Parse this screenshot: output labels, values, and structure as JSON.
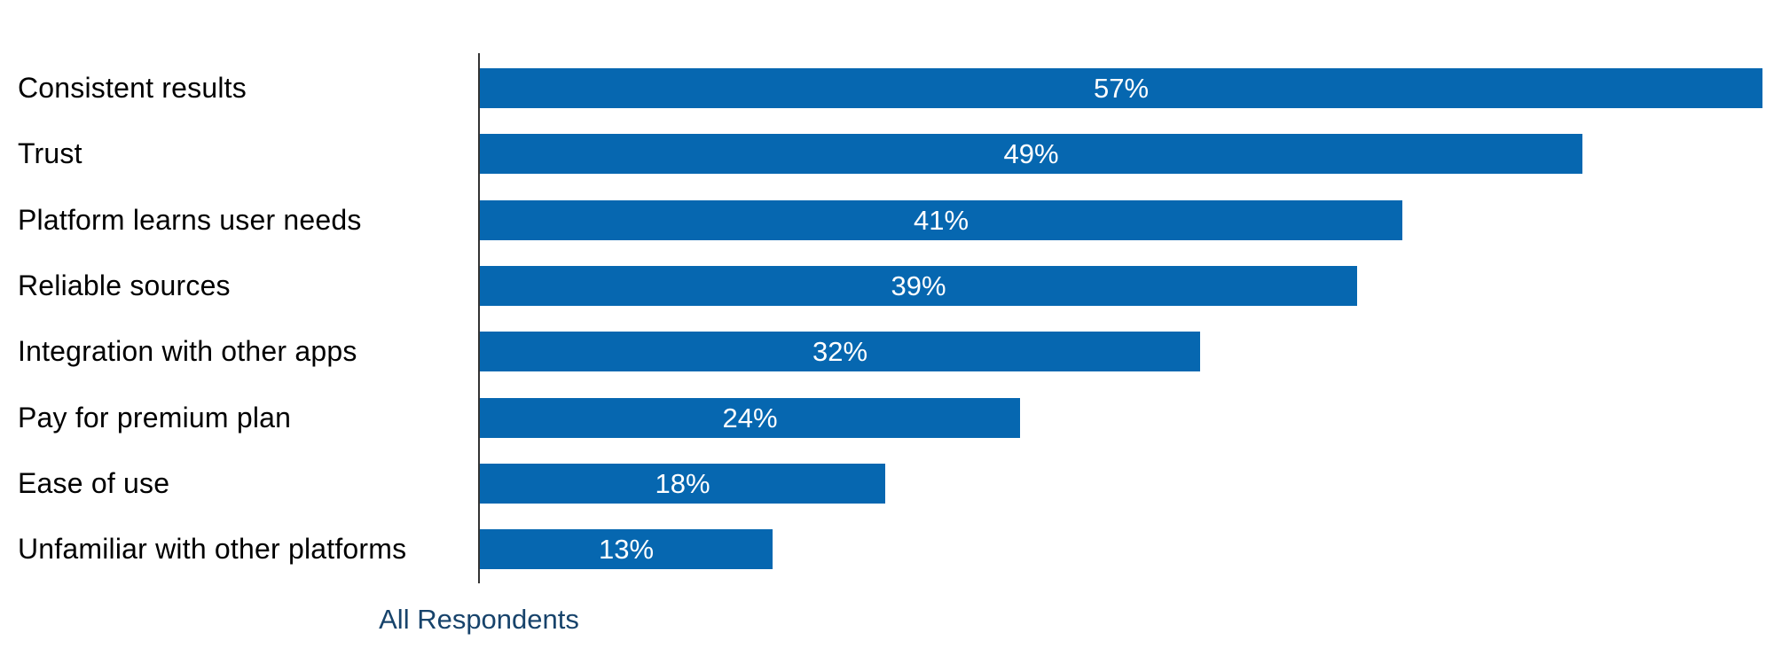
{
  "chart_data": {
    "type": "bar",
    "orientation": "horizontal",
    "title": "",
    "categories": [
      "Consistent results",
      "Trust",
      "Platform learns user needs",
      "Reliable sources",
      "Integration with other apps",
      "Pay for premium plan",
      "Ease of use",
      "Unfamiliar with other platforms"
    ],
    "values": [
      57,
      49,
      41,
      39,
      32,
      24,
      18,
      13
    ],
    "value_labels": [
      "57%",
      "49%",
      "41%",
      "39%",
      "32%",
      "24%",
      "18%",
      "13%"
    ],
    "xlabel": "All Respondents",
    "ylabel": "",
    "xlim": [
      0,
      57
    ],
    "grid": false,
    "legend": null,
    "value_label_position": "centered-inside-bar",
    "colors": {
      "bar": "#0667b0",
      "value_label": "#ffffff",
      "category_label": "#000000",
      "axis_line": "#333333",
      "xlabel_text": "#17436b",
      "background": "#ffffff"
    }
  }
}
